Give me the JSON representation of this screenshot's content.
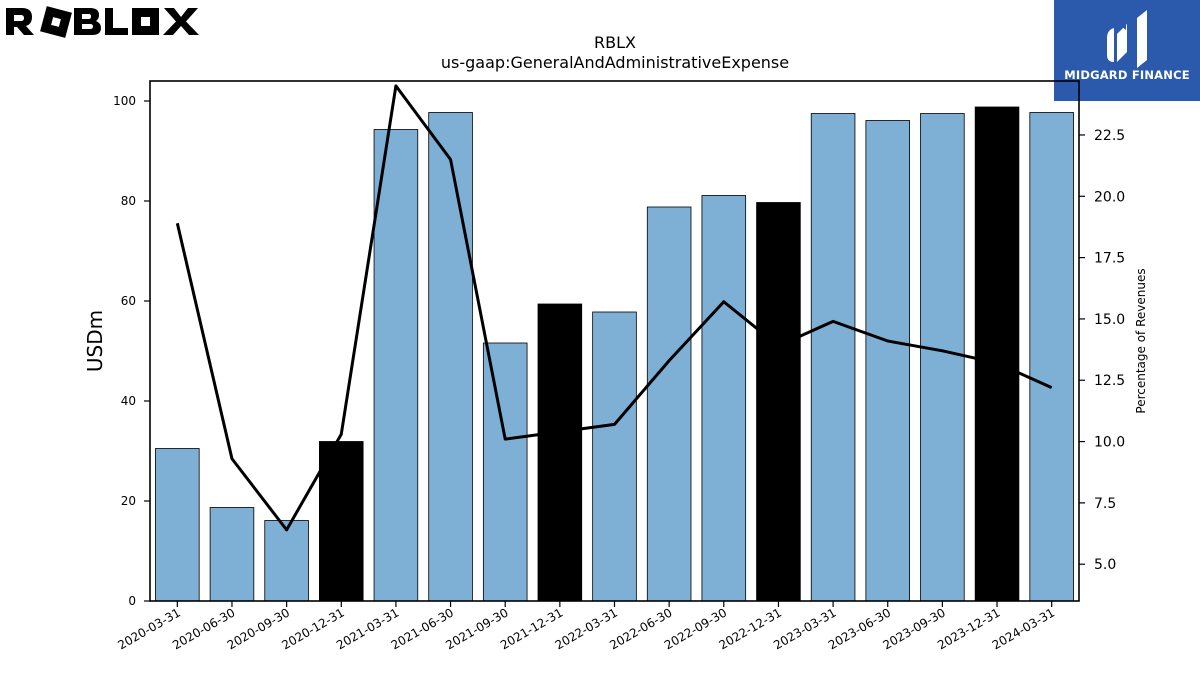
{
  "brand": {
    "left_logo_text": "ROBLOX",
    "right_logo_text": "MIDGARD FINANCE",
    "right_logo_color": "#2b5aad"
  },
  "chart_data": {
    "type": "bar",
    "title": "RBLX",
    "subtitle": "us-gaap:GeneralAndAdministrativeExpense",
    "ylabel": "USDm",
    "y2label": "Percentage of Revenues",
    "ylim": [
      0,
      104
    ],
    "y2lim": [
      3.5,
      24.7
    ],
    "yticks": [
      0,
      20,
      40,
      60,
      80,
      100
    ],
    "y2ticks": [
      "5.0",
      "7.5",
      "10.0",
      "12.5",
      "15.0",
      "17.5",
      "20.0",
      "22.5"
    ],
    "categories": [
      "2020-03-31",
      "2020-06-30",
      "2020-09-30",
      "2020-12-31",
      "2021-03-31",
      "2021-06-30",
      "2021-09-30",
      "2021-12-31",
      "2022-03-31",
      "2022-06-30",
      "2022-09-30",
      "2022-12-31",
      "2023-03-31",
      "2023-06-30",
      "2023-09-30",
      "2023-12-31",
      "2024-03-31"
    ],
    "series": [
      {
        "kind": "bar",
        "axis": "left",
        "values": [
          30.5,
          18.7,
          16.1,
          31.9,
          94.3,
          97.7,
          51.6,
          59.4,
          57.8,
          78.8,
          81.1,
          79.7,
          97.5,
          96.1,
          97.5,
          98.8,
          97.7
        ],
        "colors": [
          "#7eafd4",
          "#7eafd4",
          "#7eafd4",
          "#000000",
          "#7eafd4",
          "#7eafd4",
          "#7eafd4",
          "#000000",
          "#7eafd4",
          "#7eafd4",
          "#7eafd4",
          "#000000",
          "#7eafd4",
          "#7eafd4",
          "#7eafd4",
          "#000000",
          "#7eafd4"
        ]
      },
      {
        "kind": "line",
        "axis": "right",
        "color": "#000000",
        "values": [
          18.9,
          9.3,
          6.4,
          10.3,
          24.5,
          21.5,
          10.1,
          10.4,
          10.7,
          13.3,
          15.7,
          13.9,
          14.9,
          14.1,
          13.7,
          13.2,
          12.2
        ]
      }
    ]
  }
}
